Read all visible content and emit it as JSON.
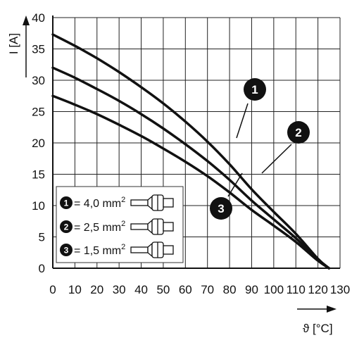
{
  "chart_data": {
    "type": "line",
    "xlabel": "ϑ [°C]",
    "ylabel": "I [A]",
    "xlim": [
      0,
      130
    ],
    "ylim": [
      0,
      40
    ],
    "x_ticks": [
      "0",
      "10",
      "20",
      "30",
      "40",
      "50",
      "60",
      "70",
      "80",
      "90",
      "100",
      "110",
      "120",
      "130"
    ],
    "y_ticks": [
      "0",
      "5",
      "10",
      "15",
      "20",
      "25",
      "30",
      "35",
      "40"
    ],
    "grid": true,
    "series": [
      {
        "id": "1",
        "name": "4,0 mm²",
        "x": [
          0,
          10,
          20,
          30,
          40,
          50,
          60,
          70,
          80,
          90,
          100,
          110,
          120,
          125
        ],
        "y": [
          37.3,
          35.5,
          33.5,
          31.3,
          28.9,
          26.3,
          23.4,
          20.2,
          16.6,
          12.6,
          9.0,
          5.5,
          1.5,
          0
        ]
      },
      {
        "id": "2",
        "name": "2,5 mm²",
        "x": [
          0,
          10,
          20,
          30,
          40,
          50,
          60,
          70,
          80,
          90,
          100,
          110,
          120,
          125
        ],
        "y": [
          32.0,
          30.4,
          28.6,
          26.7,
          24.6,
          22.3,
          19.8,
          17.1,
          14.1,
          10.8,
          7.8,
          4.8,
          1.4,
          0
        ]
      },
      {
        "id": "3",
        "name": "1,5 mm²",
        "x": [
          0,
          10,
          20,
          30,
          40,
          50,
          60,
          70,
          80,
          90,
          100,
          110,
          120,
          125
        ],
        "y": [
          27.5,
          26.1,
          24.6,
          22.9,
          21.1,
          19.1,
          17.0,
          14.7,
          12.1,
          9.3,
          6.8,
          4.2,
          1.2,
          0
        ]
      }
    ],
    "legend": {
      "placement": "bottom-left",
      "entries": [
        {
          "id": "1",
          "text": "= 4,0 mm"
        },
        {
          "id": "2",
          "text": "= 2,5 mm"
        },
        {
          "id": "3",
          "text": "= 1,5 mm"
        }
      ],
      "superscript": "2"
    },
    "callouts": [
      {
        "id": "1",
        "series": "1"
      },
      {
        "id": "2",
        "series": "2"
      },
      {
        "id": "3",
        "series": "3"
      }
    ]
  }
}
